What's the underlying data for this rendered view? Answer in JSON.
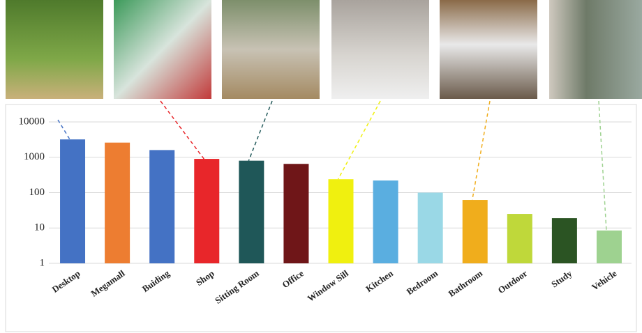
{
  "chart_data": {
    "type": "bar",
    "categories": [
      "Desktop",
      "Megamall",
      "Buiding",
      "Shop",
      "Sitting Room",
      "Office",
      "Window Sill",
      "Kitchen",
      "Bedroom",
      "Bathroom",
      "Outdoor",
      "Study",
      "Vehicle"
    ],
    "values": [
      3200,
      2600,
      1600,
      900,
      800,
      650,
      240,
      220,
      100,
      62,
      25,
      19,
      8.5
    ],
    "colors": [
      "#4472c4",
      "#ed7d31",
      "#4472c4",
      "#e8262a",
      "#1f5758",
      "#6f1618",
      "#f0f00f",
      "#5aaee0",
      "#9ad8e6",
      "#f0ad1c",
      "#bfd83a",
      "#2b5423",
      "#9ed290"
    ],
    "ylim": [
      1,
      10000
    ],
    "yticks": [
      1,
      10,
      100,
      1000,
      10000
    ],
    "log_scale": true,
    "grid": true
  }
}
